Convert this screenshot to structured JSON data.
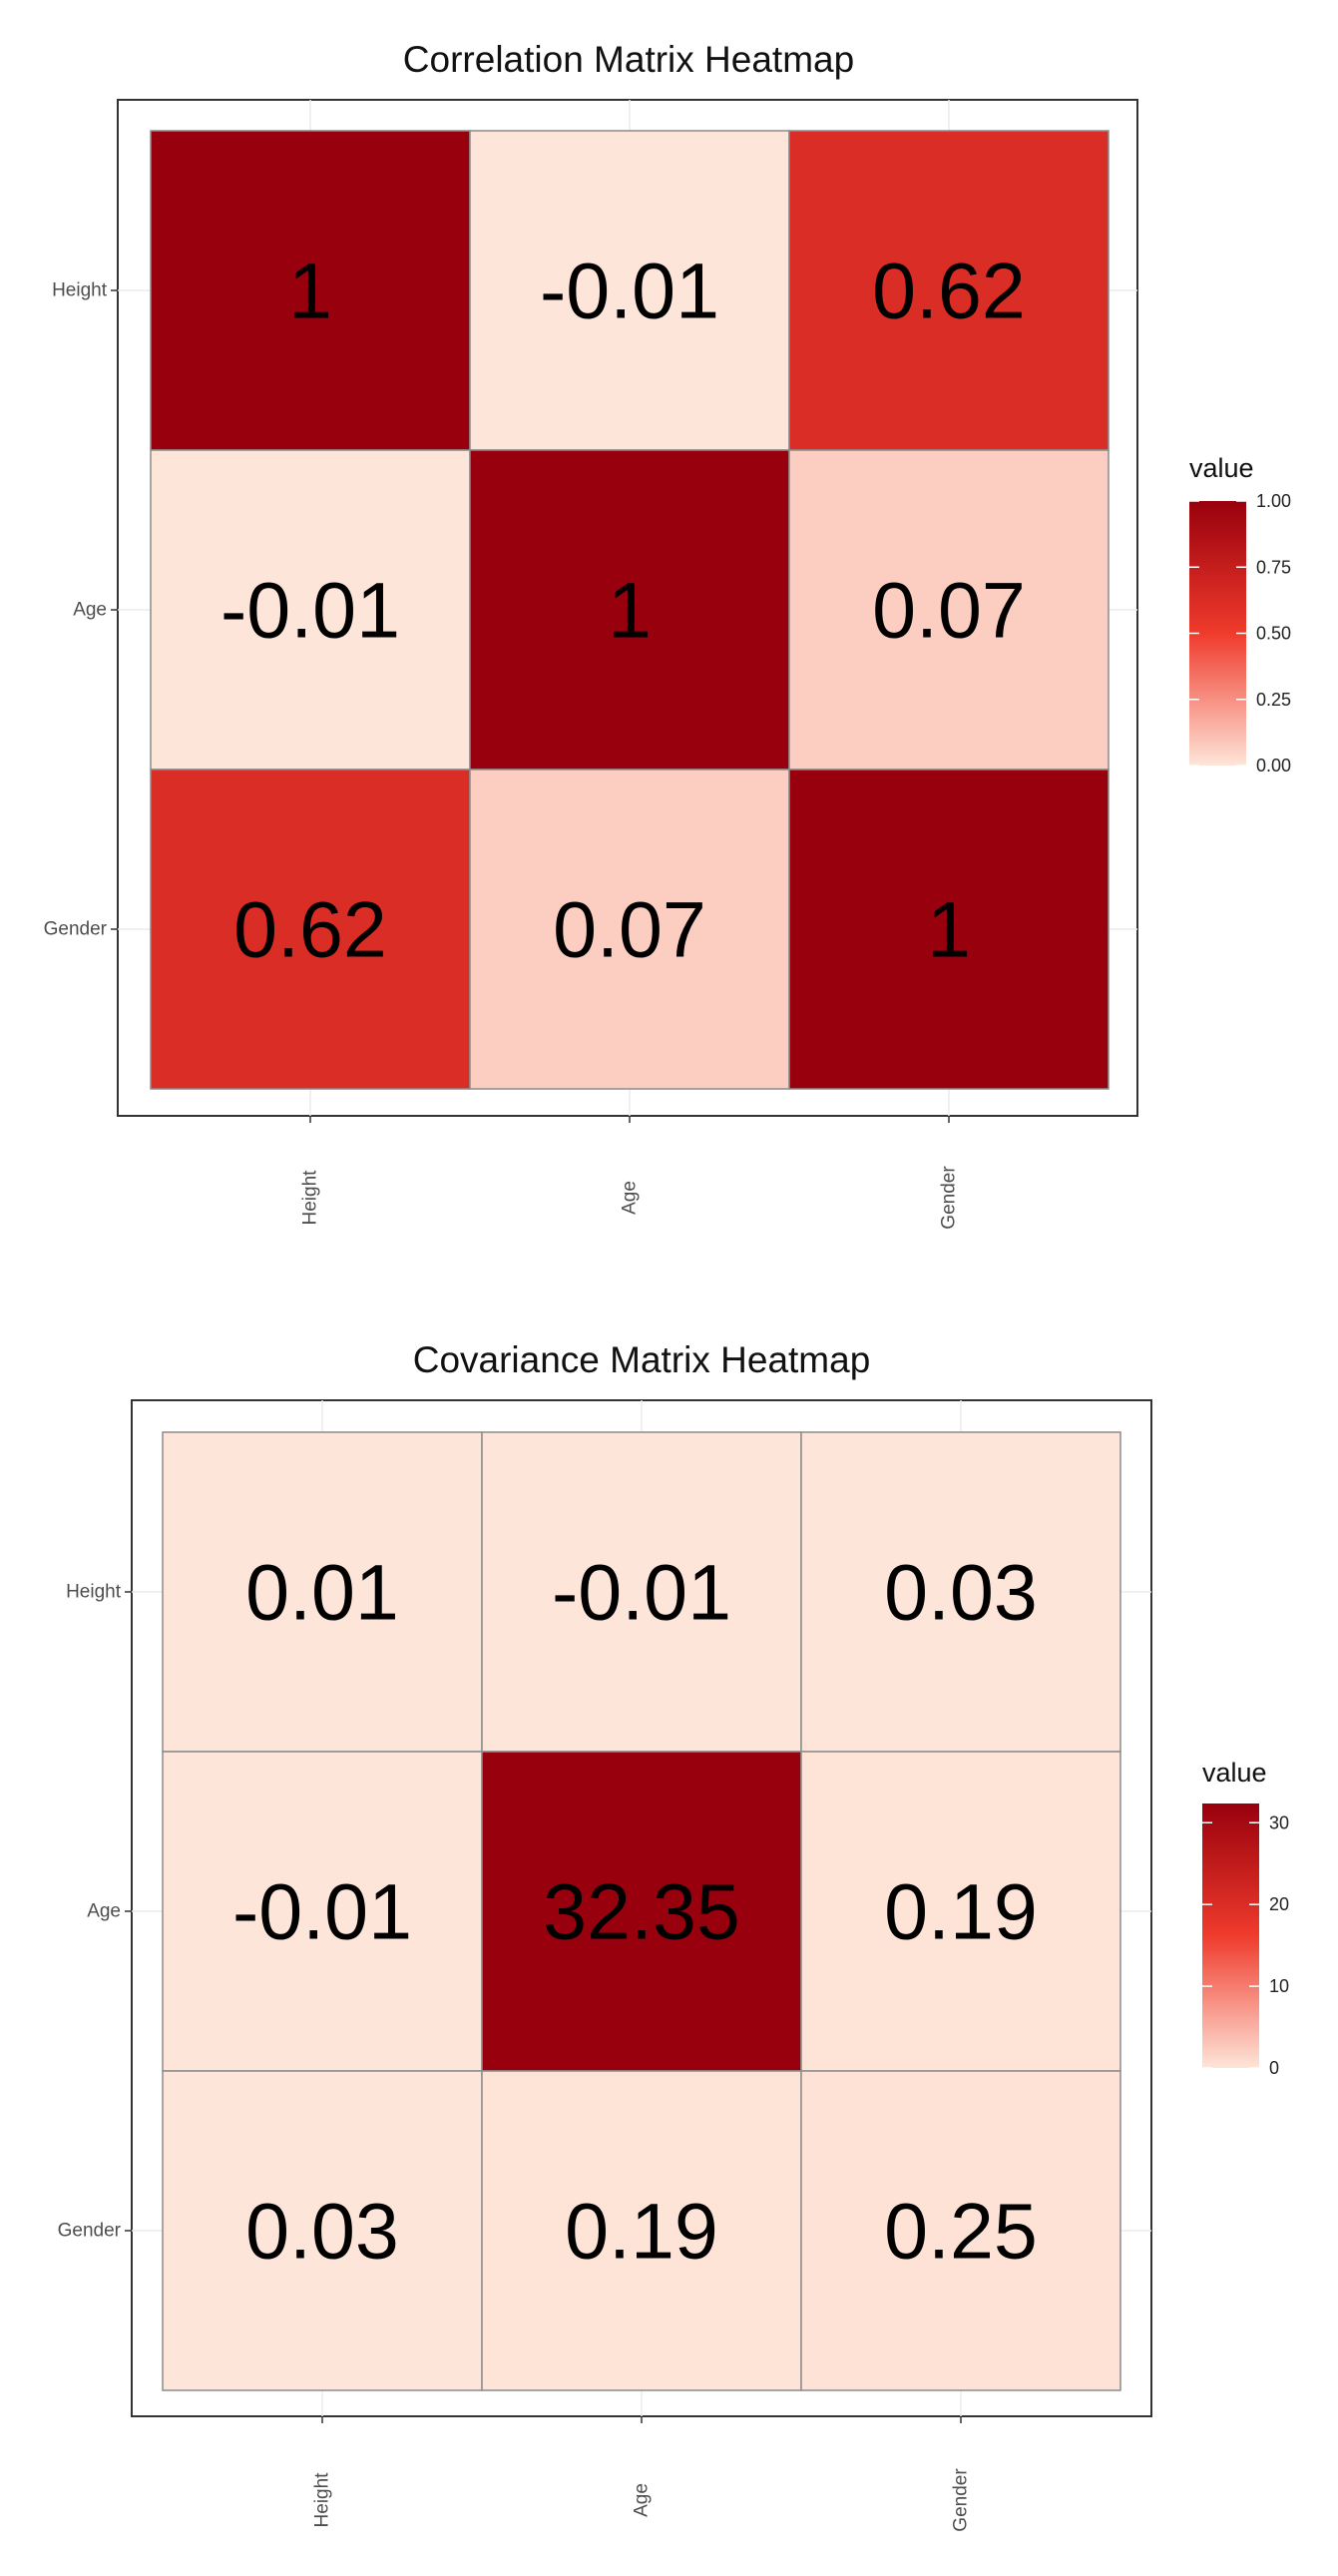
{
  "chart_data": [
    {
      "type": "heatmap",
      "title": "Correlation Matrix Heatmap",
      "x_categories": [
        "Height",
        "Age",
        "Gender"
      ],
      "y_categories": [
        "Height",
        "Age",
        "Gender"
      ],
      "values": [
        [
          1,
          -0.01,
          0.62
        ],
        [
          -0.01,
          1,
          0.07
        ],
        [
          0.62,
          0.07,
          1
        ]
      ],
      "cell_labels": [
        [
          "1",
          "-0.01",
          "0.62"
        ],
        [
          "-0.01",
          "1",
          "0.07"
        ],
        [
          "0.62",
          "0.07",
          "1"
        ]
      ],
      "legend": {
        "title": "value",
        "placement": "right",
        "range": [
          0,
          1
        ],
        "ticks": [
          0,
          0.25,
          0.5,
          0.75,
          1
        ],
        "tick_labels": [
          "0.00",
          "0.25",
          "0.50",
          "0.75",
          "1.00"
        ]
      },
      "color_scale": {
        "low": "#fee5d9",
        "mid": "#ef3b2c",
        "high": "#99000d"
      },
      "grid": true
    },
    {
      "type": "heatmap",
      "title": "Covariance Matrix Heatmap",
      "x_categories": [
        "Height",
        "Age",
        "Gender"
      ],
      "y_categories": [
        "Height",
        "Age",
        "Gender"
      ],
      "values": [
        [
          0.01,
          -0.01,
          0.03
        ],
        [
          -0.01,
          32.35,
          0.19
        ],
        [
          0.03,
          0.19,
          0.25
        ]
      ],
      "cell_labels": [
        [
          "0.01",
          "-0.01",
          "0.03"
        ],
        [
          "-0.01",
          "32.35",
          "0.19"
        ],
        [
          "0.03",
          "0.19",
          "0.25"
        ]
      ],
      "legend": {
        "title": "value",
        "placement": "right",
        "range": [
          0,
          32.35
        ],
        "ticks": [
          0,
          10,
          20,
          30
        ],
        "tick_labels": [
          "0",
          "10",
          "20",
          "30"
        ]
      },
      "color_scale": {
        "low": "#fee5d9",
        "mid": "#ef3b2c",
        "high": "#99000d"
      },
      "grid": true
    }
  ]
}
